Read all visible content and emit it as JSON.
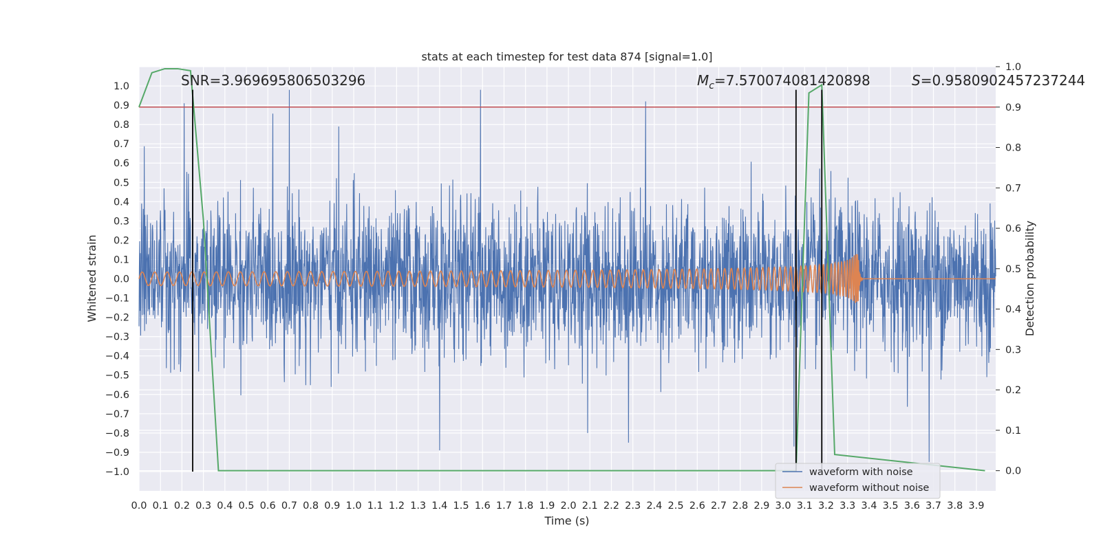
{
  "chart_data": {
    "type": "line",
    "title": "stats at each timestep for test data 874 [signal=1.0]",
    "xlabel": "Time (s)",
    "ylabel": "Whitened strain",
    "y2label": "Detection probability",
    "xlim": [
      0.0,
      3.99
    ],
    "ylim": [
      -1.1,
      1.1
    ],
    "y2lim": [
      -0.05,
      1.0
    ],
    "x_ticks": [
      "0.0",
      "0.1",
      "0.2",
      "0.3",
      "0.4",
      "0.5",
      "0.6",
      "0.7",
      "0.8",
      "0.9",
      "1.0",
      "1.1",
      "1.2",
      "1.3",
      "1.4",
      "1.5",
      "1.6",
      "1.7",
      "1.8",
      "1.9",
      "2.0",
      "2.1",
      "2.2",
      "2.3",
      "2.4",
      "2.5",
      "2.6",
      "2.7",
      "2.8",
      "2.9",
      "3.0",
      "3.1",
      "3.2",
      "3.3",
      "3.4",
      "3.5",
      "3.6",
      "3.7",
      "3.8",
      "3.9"
    ],
    "y_ticks": [
      "1.0",
      "0.9",
      "0.8",
      "0.7",
      "0.6",
      "0.5",
      "0.4",
      "0.3",
      "0.2",
      "0.1",
      "0.0",
      "−0.1",
      "−0.2",
      "−0.3",
      "−0.4",
      "−0.5",
      "−0.6",
      "−0.7",
      "−0.8",
      "−0.9",
      "−1.0"
    ],
    "y2_ticks": [
      "1.0",
      "0.9",
      "0.8",
      "0.7",
      "0.6",
      "0.5",
      "0.4",
      "0.3",
      "0.2",
      "0.1",
      "0.0"
    ],
    "grid": true,
    "legend_position": "lower-right",
    "annotations": {
      "snr": "SNR=3.969695806503296",
      "mc_symbol": "M",
      "mc_sub": "c",
      "mc_value": "=7.570074081420898",
      "s_symbol": "S",
      "s_value": "=0.9580902457237244"
    },
    "series": [
      {
        "name": "waveform with noise",
        "color": "#4c72b0",
        "description": "whitened noisy strain, amplitude roughly within [-0.9, 0.98]",
        "peaks": [
          {
            "x": 0.21,
            "y": 0.91
          },
          {
            "x": 0.25,
            "y": 0.82
          },
          {
            "x": 0.7,
            "y": 0.98
          },
          {
            "x": 0.93,
            "y": 0.79
          },
          {
            "x": 1.4,
            "y": -0.89
          },
          {
            "x": 1.59,
            "y": 0.98
          },
          {
            "x": 2.09,
            "y": -0.8
          },
          {
            "x": 2.28,
            "y": -0.85
          },
          {
            "x": 2.36,
            "y": 0.92
          },
          {
            "x": 3.05,
            "y": -0.87
          },
          {
            "x": 3.68,
            "y": -0.95
          }
        ]
      },
      {
        "name": "waveform without noise",
        "color": "#dd8452",
        "description": "chirp signal with growing amplitude, merger near 3.35 s",
        "chirp_end": 3.35,
        "peak_amplitude": 0.13
      },
      {
        "name": "detection probability",
        "color": "#55a868",
        "axis": "y2",
        "x": [
          0.0,
          0.06,
          0.12,
          0.18,
          0.24,
          0.3,
          0.37,
          3.06,
          3.12,
          3.18,
          3.24,
          3.94
        ],
        "y": [
          0.9,
          0.985,
          0.995,
          0.995,
          0.99,
          0.62,
          0.0,
          0.0,
          0.935,
          0.955,
          0.04,
          0.0
        ]
      }
    ],
    "threshold": {
      "axis": "y2",
      "value": 0.9,
      "color": "#c44e52"
    },
    "vlines": [
      {
        "x": 0.25,
        "ymin": -1.0,
        "ymax": 0.98,
        "color": "#000000"
      },
      {
        "x": 3.06,
        "ymin": -1.0,
        "ymax": 0.98,
        "color": "#000000"
      },
      {
        "x": 3.18,
        "ymin": -1.0,
        "ymax": 0.98,
        "color": "#000000"
      }
    ],
    "colors": {
      "plot_bg": "#eaeaf2",
      "grid": "#ffffff"
    }
  }
}
